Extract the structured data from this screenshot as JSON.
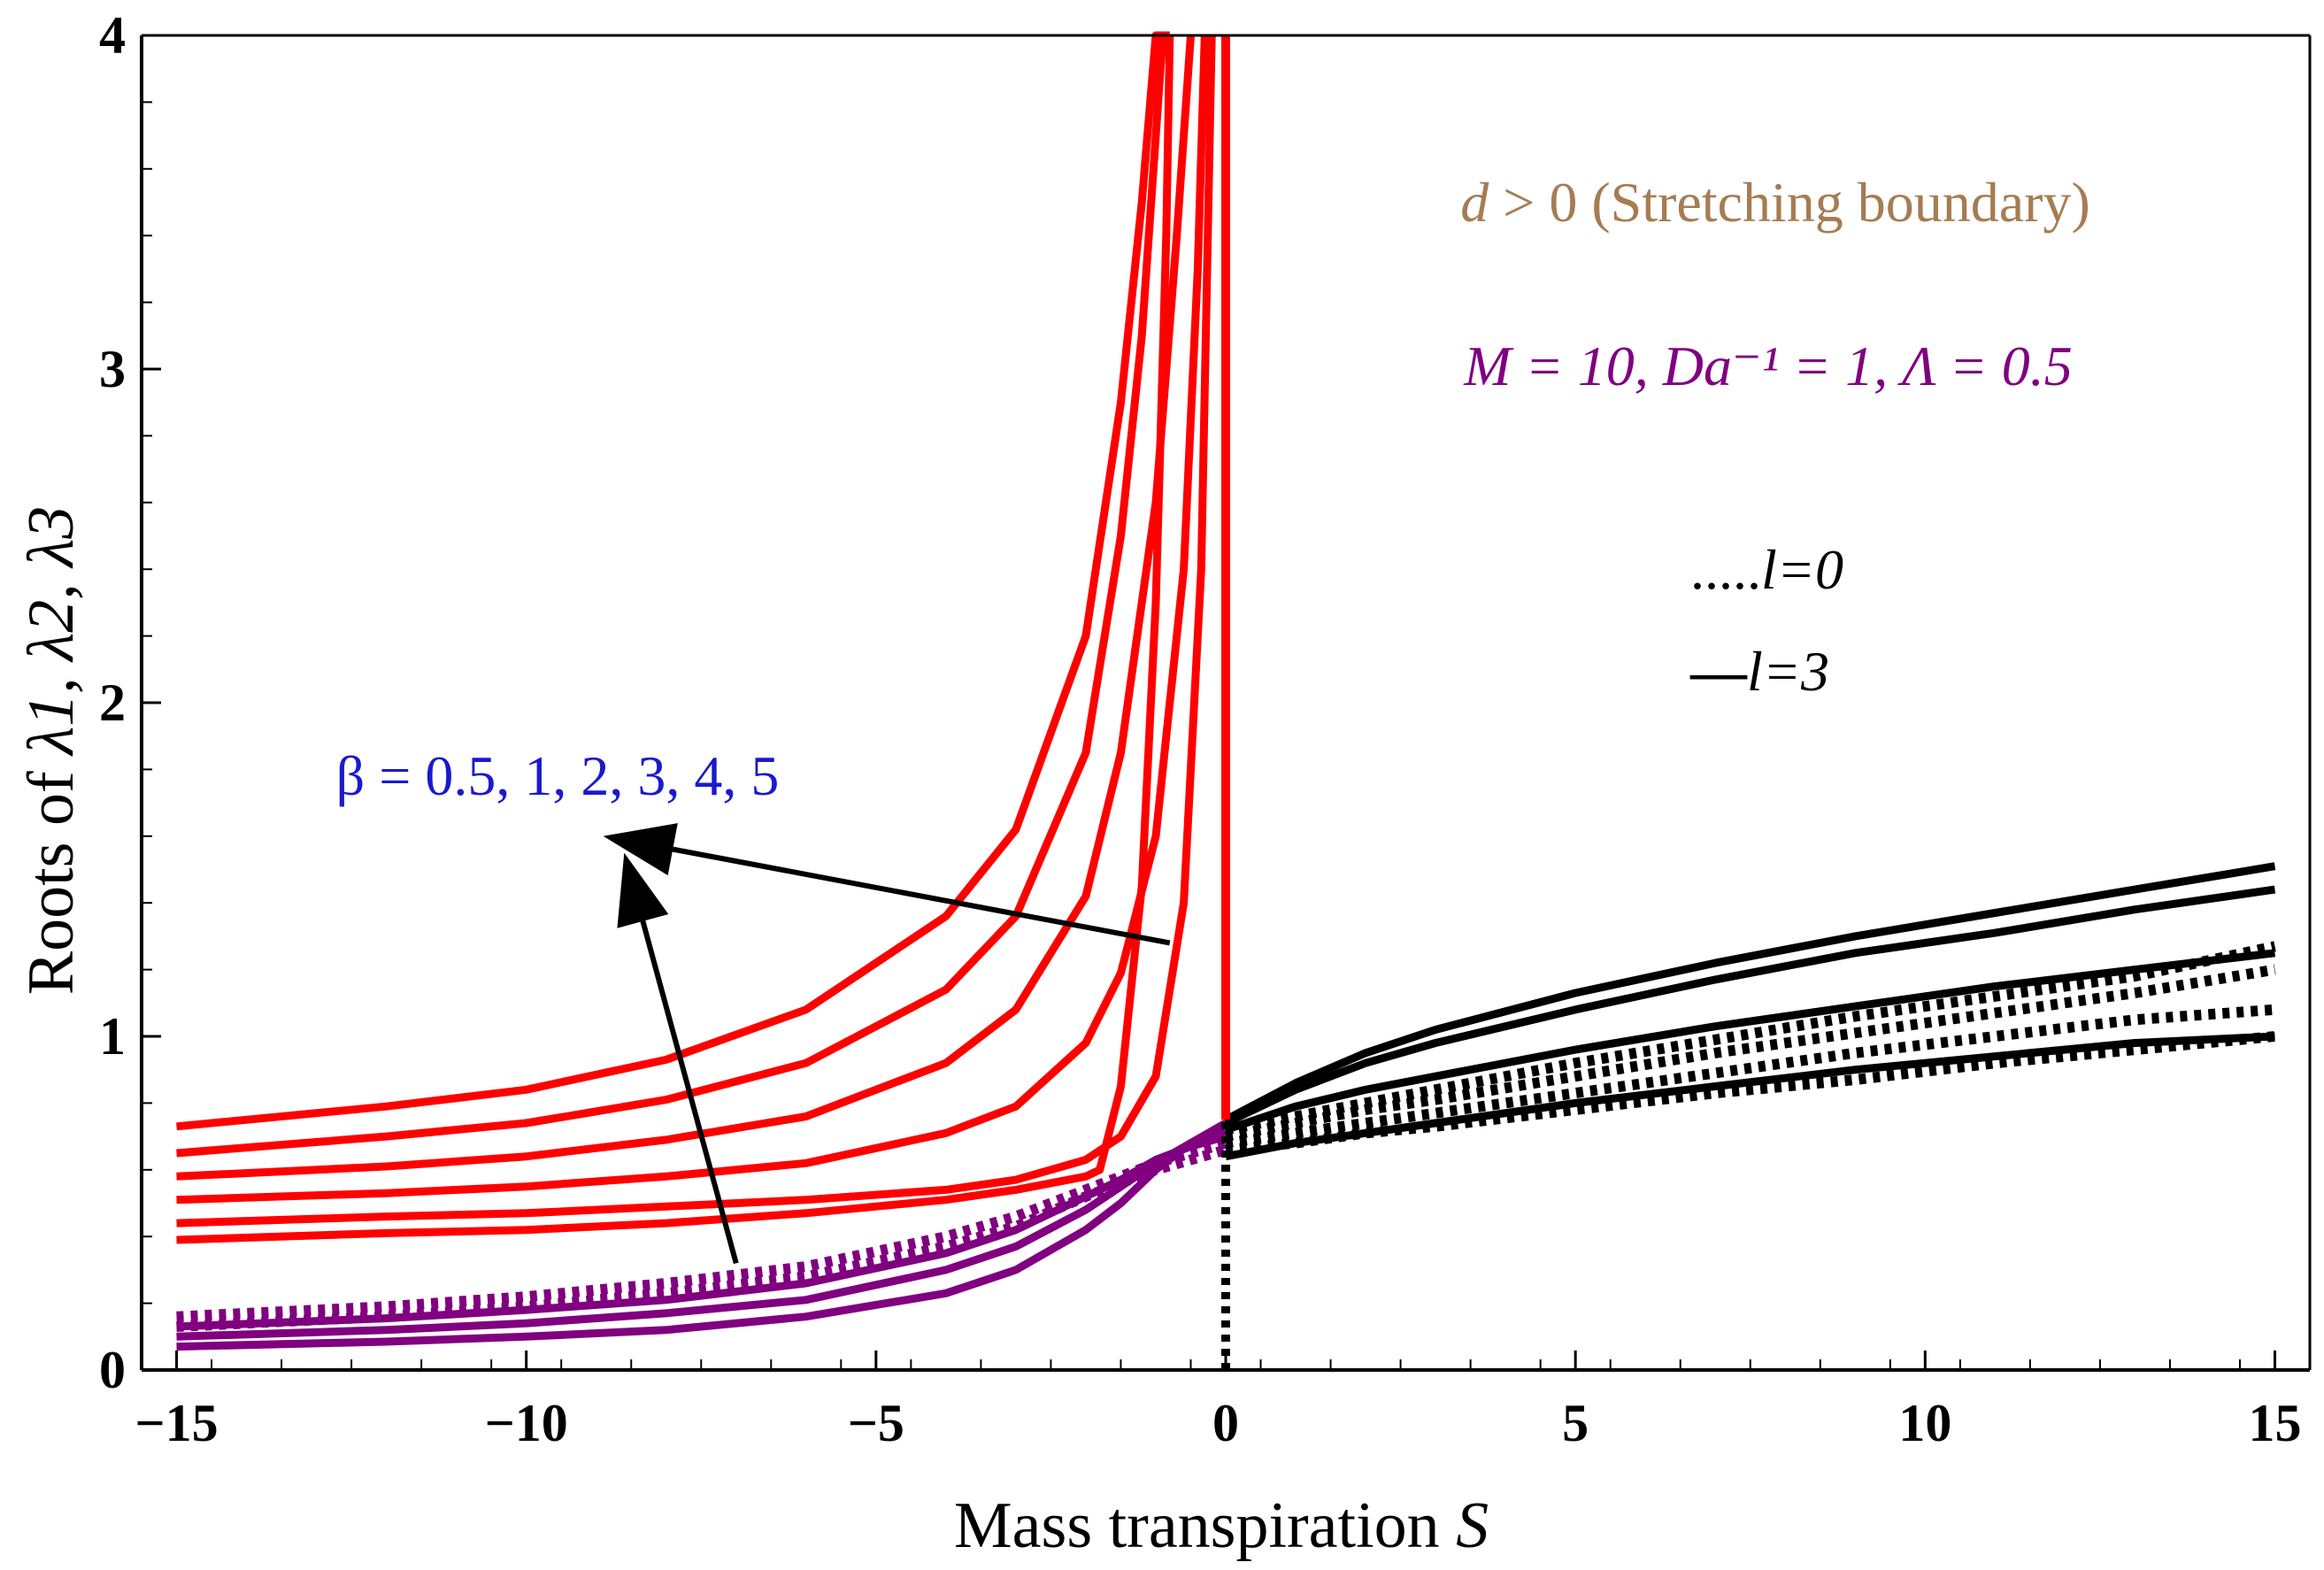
{
  "chart_data": {
    "type": "line",
    "xlabel": {
      "text": "Mass transpiration ",
      "var": "S"
    },
    "ylabel": {
      "text": "Roots of ",
      "vars": "λ1, λ2, λ3"
    },
    "xlim": [
      -15.5,
      15.5
    ],
    "ylim": [
      0,
      4
    ],
    "xticks": [
      -15,
      -10,
      -5,
      0,
      5,
      10,
      15
    ],
    "xtick_labels": [
      "−15",
      "−10",
      "−5",
      "0",
      "5",
      "10",
      "15"
    ],
    "yticks": [
      0,
      1,
      2,
      3,
      4
    ],
    "ytick_labels": [
      "0",
      "1",
      "2",
      "3",
      "4"
    ],
    "grid": false,
    "colors": {
      "lambda1": "#ff0000",
      "lambda2": "#800080",
      "lambda3": "#000000",
      "beta_annotation": "#1a1acc",
      "regime_annotation": "#a67c52",
      "param_annotation": "#800080"
    },
    "annotations": {
      "regime": {
        "var": "d",
        "text": " > 0 (Stretching boundary)"
      },
      "params": "M = 10, Da⁻¹ = 1, Λ = 0.5",
      "beta": "β = 0.5, 1, 2, 3, 4, 5"
    },
    "legend": {
      "position": "right",
      "items": [
        {
          "style": "dotted",
          "marker": ".....",
          "label": "l=0"
        },
        {
          "style": "solid",
          "marker": "—",
          "label": "l=3"
        }
      ]
    },
    "series": [
      {
        "group": "lambda1",
        "style": "solid",
        "beta": 0.5,
        "x": [
          -15,
          -12,
          -10,
          -8,
          -6,
          -4,
          -3,
          -2,
          -1.5,
          -1.2,
          -1,
          -0.8
        ],
        "y": [
          0.73,
          0.79,
          0.84,
          0.93,
          1.08,
          1.36,
          1.62,
          2.2,
          2.9,
          3.5,
          4.0,
          4.0
        ]
      },
      {
        "group": "lambda1",
        "style": "solid",
        "beta": 1,
        "x": [
          -15,
          -12,
          -10,
          -8,
          -6,
          -4,
          -3,
          -2,
          -1.5,
          -1.2,
          -1,
          -0.9
        ],
        "y": [
          0.65,
          0.7,
          0.74,
          0.81,
          0.92,
          1.14,
          1.36,
          1.85,
          2.5,
          3.1,
          3.7,
          4.0
        ]
      },
      {
        "group": "lambda1",
        "style": "solid",
        "beta": 2,
        "x": [
          -15,
          -12,
          -10,
          -8,
          -6,
          -4,
          -3,
          -2,
          -1.5,
          -1.0,
          -0.7,
          -0.5
        ],
        "y": [
          0.58,
          0.61,
          0.64,
          0.69,
          0.76,
          0.92,
          1.08,
          1.42,
          1.85,
          2.6,
          3.4,
          4.0
        ]
      },
      {
        "group": "lambda1",
        "style": "solid",
        "beta": 3,
        "x": [
          -15,
          -12,
          -10,
          -8,
          -6,
          -4,
          -3,
          -2,
          -1.5,
          -1.0,
          -0.6,
          -0.4,
          -0.3
        ],
        "y": [
          0.51,
          0.53,
          0.55,
          0.58,
          0.62,
          0.71,
          0.79,
          0.98,
          1.19,
          1.6,
          2.4,
          3.3,
          4.0
        ]
      },
      {
        "group": "lambda1",
        "style": "solid",
        "beta": 4,
        "x": [
          -15,
          -12,
          -10,
          -8,
          -6,
          -4,
          -3,
          -2,
          -1.5,
          -1.0,
          -0.6,
          -0.35,
          -0.2
        ],
        "y": [
          0.44,
          0.46,
          0.47,
          0.49,
          0.51,
          0.54,
          0.57,
          0.63,
          0.7,
          0.88,
          1.4,
          2.4,
          4.0
        ]
      },
      {
        "group": "lambda1",
        "style": "solid",
        "beta": 5,
        "x": [
          -15,
          -12,
          -10,
          -8,
          -6,
          -4,
          -3,
          -2,
          -1.8,
          -1.5,
          -1.2,
          -1.0,
          -0.85,
          -0.8
        ],
        "y": [
          0.39,
          0.41,
          0.42,
          0.44,
          0.47,
          0.51,
          0.54,
          0.58,
          0.6,
          0.85,
          1.45,
          2.3,
          3.4,
          4.0
        ]
      },
      {
        "group": "lambda2",
        "style": "solid",
        "l": 3,
        "x": [
          -15,
          -12,
          -10,
          -8,
          -6,
          -4,
          -3,
          -2,
          -1.5,
          -1,
          -0.5,
          0
        ],
        "y": [
          0.07,
          0.085,
          0.1,
          0.12,
          0.16,
          0.23,
          0.3,
          0.42,
          0.5,
          0.6,
          0.68,
          0.74
        ]
      },
      {
        "group": "lambda2",
        "style": "solid",
        "l": 3,
        "x": [
          -15,
          -12,
          -10,
          -8,
          -6,
          -4,
          -3,
          -2,
          -1.5,
          -1,
          -0.5,
          0
        ],
        "y": [
          0.1,
          0.12,
          0.14,
          0.17,
          0.21,
          0.3,
          0.37,
          0.48,
          0.55,
          0.62,
          0.68,
          0.72
        ]
      },
      {
        "group": "lambda2",
        "style": "solid",
        "l": 3,
        "x": [
          -15,
          -12,
          -10,
          -8,
          -6,
          -4,
          -3,
          -2,
          -1.5,
          -1,
          -0.5,
          0
        ],
        "y": [
          0.13,
          0.155,
          0.18,
          0.21,
          0.26,
          0.35,
          0.42,
          0.52,
          0.57,
          0.63,
          0.67,
          0.7
        ]
      },
      {
        "group": "lambda2",
        "style": "dotted",
        "l": 0,
        "x": [
          -15,
          -12,
          -10,
          -8,
          -6,
          -4,
          -3,
          -2,
          -1.5,
          -1,
          -0.5,
          0
        ],
        "y": [
          0.16,
          0.19,
          0.22,
          0.26,
          0.31,
          0.4,
          0.46,
          0.54,
          0.58,
          0.62,
          0.65,
          0.68
        ]
      },
      {
        "group": "lambda2",
        "style": "dotted",
        "l": 0,
        "x": [
          -15,
          -12,
          -10,
          -8,
          -6,
          -4,
          -3,
          -2,
          -1.5,
          -1,
          -0.5,
          0
        ],
        "y": [
          0.13,
          0.16,
          0.19,
          0.23,
          0.28,
          0.37,
          0.43,
          0.52,
          0.56,
          0.6,
          0.63,
          0.66
        ]
      },
      {
        "group": "lambda3",
        "style": "solid",
        "l": 3,
        "x": [
          0,
          1,
          2,
          3,
          5,
          7,
          9,
          11,
          13,
          15
        ],
        "y": [
          0.75,
          0.86,
          0.95,
          1.02,
          1.13,
          1.22,
          1.3,
          1.37,
          1.44,
          1.51
        ]
      },
      {
        "group": "lambda3",
        "style": "solid",
        "l": 3,
        "x": [
          0,
          1,
          2,
          3,
          5,
          7,
          9,
          11,
          13,
          15
        ],
        "y": [
          0.74,
          0.84,
          0.92,
          0.98,
          1.08,
          1.17,
          1.25,
          1.31,
          1.38,
          1.44
        ]
      },
      {
        "group": "lambda3",
        "style": "solid",
        "l": 3,
        "x": [
          0,
          1,
          2,
          3,
          5,
          7,
          9,
          11,
          13,
          15
        ],
        "y": [
          0.72,
          0.79,
          0.84,
          0.88,
          0.96,
          1.03,
          1.09,
          1.15,
          1.2,
          1.25
        ]
      },
      {
        "group": "lambda3",
        "style": "solid",
        "l": 3,
        "x": [
          0,
          1,
          2,
          3,
          5,
          7,
          9,
          11,
          13,
          15
        ],
        "y": [
          0.64,
          0.68,
          0.71,
          0.74,
          0.8,
          0.85,
          0.9,
          0.94,
          0.98,
          1.0
        ]
      },
      {
        "group": "lambda3",
        "style": "dotted",
        "l": 0,
        "x": [
          0,
          1,
          2,
          3,
          5,
          7,
          9,
          11,
          13,
          15
        ],
        "y": [
          0.72,
          0.76,
          0.8,
          0.84,
          0.92,
          0.99,
          1.06,
          1.12,
          1.18,
          1.27
        ]
      },
      {
        "group": "lambda3",
        "style": "dotted",
        "l": 0,
        "x": [
          0,
          1,
          2,
          3,
          5,
          7,
          9,
          11,
          13,
          15
        ],
        "y": [
          0.7,
          0.74,
          0.78,
          0.81,
          0.88,
          0.95,
          1.01,
          1.07,
          1.13,
          1.2
        ]
      },
      {
        "group": "lambda3",
        "style": "dotted",
        "l": 0,
        "x": [
          0,
          1,
          2,
          3,
          5,
          7,
          9,
          11,
          13,
          15
        ],
        "y": [
          0.68,
          0.71,
          0.74,
          0.77,
          0.83,
          0.89,
          0.95,
          1.0,
          1.05,
          1.08
        ]
      },
      {
        "group": "lambda3",
        "style": "dotted",
        "l": 0,
        "x": [
          0,
          1,
          2,
          3,
          5,
          7,
          9,
          11,
          13,
          15
        ],
        "y": [
          0.66,
          0.68,
          0.71,
          0.73,
          0.78,
          0.83,
          0.87,
          0.92,
          0.96,
          1.0
        ]
      }
    ],
    "vertical_lines": [
      {
        "x": 0,
        "y_from": 0.75,
        "y_to": 4.0,
        "color": "#ff0000",
        "style": "solid"
      },
      {
        "x": 0,
        "y_from": 0,
        "y_to": 0.75,
        "color": "#000000",
        "style": "dotted"
      }
    ],
    "arrows": [
      {
        "from": [
          -0.8,
          1.28
        ],
        "to": [
          -8.9,
          1.6
        ]
      },
      {
        "from": [
          -7.0,
          0.32
        ],
        "to": [
          -8.6,
          1.55
        ]
      }
    ]
  }
}
